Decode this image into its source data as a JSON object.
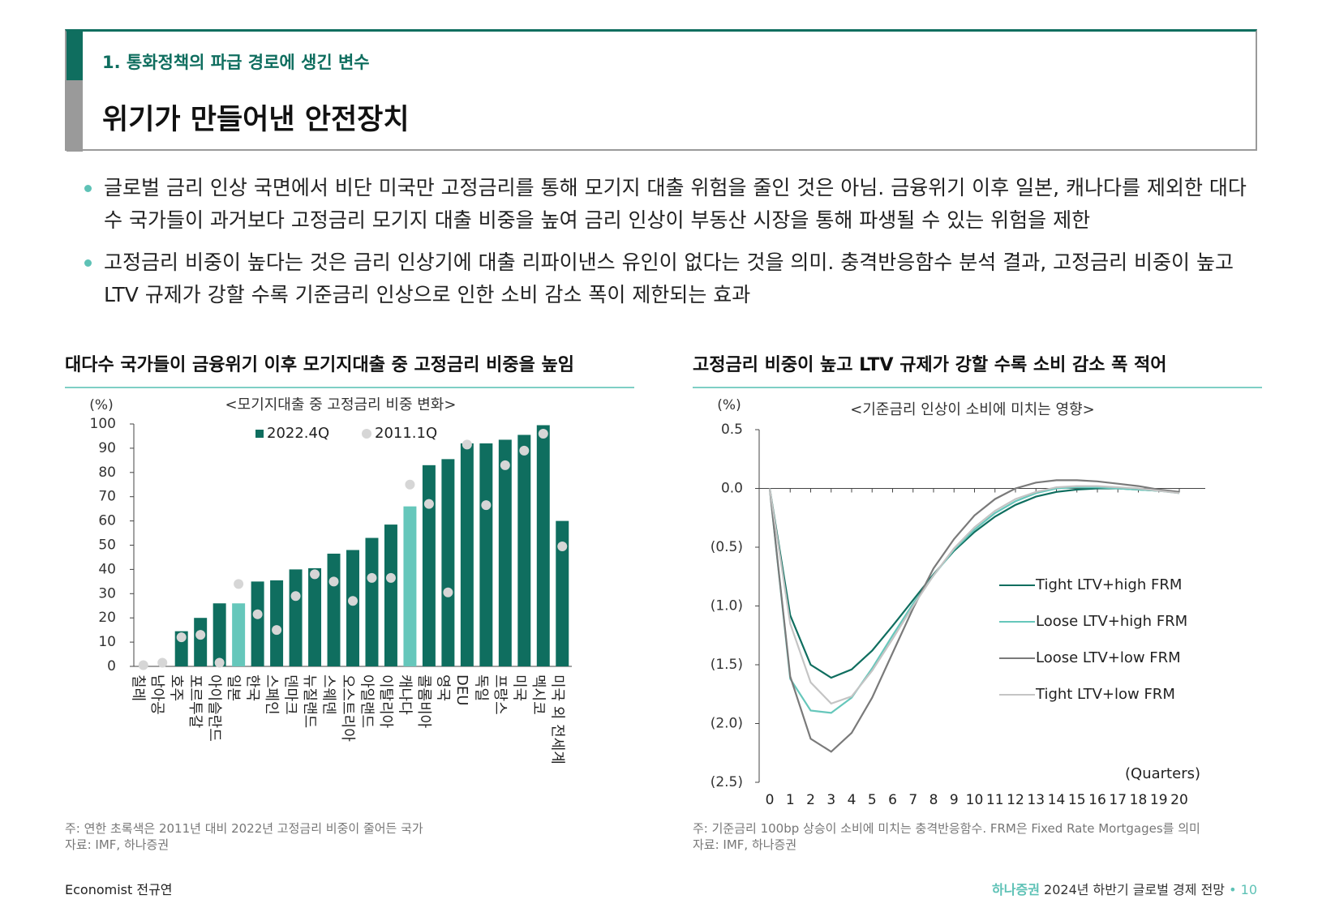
{
  "header": {
    "section": "1. 통화정책의 파급 경로에 생긴 변수",
    "title": "위기가 만들어낸 안전장치"
  },
  "bullets": [
    "글로벌 금리 인상 국면에서 비단 미국만 고정금리를 통해 모기지 대출 위험을 줄인 것은 아님. 금융위기 이후 일본, 캐나다를 제외한 대다수 국가들이 과거보다 고정금리 모기지 대출 비중을 높여 금리 인상이 부동산 시장을 통해 파생될 수 있는 위험을 제한",
    "고정금리 비중이 높다는 것은 금리 인상기에 대출 리파이낸스 유인이 없다는 것을 의미. 충격반응함수 분석 결과, 고정금리 비중이 높고 LTV 규제가 강할 수록 기준금리 인상으로 인한 소비 감소 폭이 제한되는 효과"
  ],
  "left": {
    "heading": "대다수 국가들이 금융위기 이후 모기지대출 중 고정금리 비중을 높임",
    "note": "주: 연한 초록색은 2011년 대비 2022년 고정금리 비중이 줄어든 국가",
    "source": "자료: IMF, 하나증권"
  },
  "right": {
    "heading": "고정금리 비중이 높고 LTV 규제가 강할 수록 소비 감소 폭 적어",
    "note": "주: 기준금리 100bp 상승이 소비에 미치는 충격반응함수. FRM은 Fixed Rate Mortgages를 의미",
    "source": "자료: IMF, 하나증권"
  },
  "footer": {
    "author": "Economist 전규연",
    "brand": "하나증권",
    "report": "2024년 하반기 글로벌 경제 전망",
    "page": "10"
  },
  "colors": {
    "teal_dark": "#0f6e5f",
    "teal_light": "#66c7bb",
    "dot_gray": "#d6d6d6",
    "line_gray_dark": "#7a7a7a",
    "line_gray_light": "#c4c4c4"
  },
  "chart_data": [
    {
      "type": "bar",
      "title": "<모기지대출 중 고정금리 비중 변화>",
      "ylabel": "(%)",
      "ylim": [
        0,
        100
      ],
      "yticks": [
        0,
        10,
        20,
        30,
        40,
        50,
        60,
        70,
        80,
        90,
        100
      ],
      "categories": [
        "칠레",
        "남아공",
        "호주",
        "포르투갈",
        "아이슬란드",
        "일본",
        "한국",
        "스페인",
        "덴마크",
        "뉴질랜드",
        "스웨덴",
        "오스트리아",
        "아일랜드",
        "이탈리아",
        "캐나다",
        "콜롬비아",
        "영국",
        "DEU",
        "독일",
        "프랑스",
        "미국",
        "멕시코",
        "미국 외 전세계"
      ],
      "series": [
        {
          "name": "2022.4Q",
          "values": [
            0,
            0,
            14.5,
            20,
            26,
            26,
            35,
            35.5,
            40,
            40.5,
            46.5,
            48,
            53,
            58.5,
            66,
            83,
            85.5,
            92,
            92,
            93.5,
            95.5,
            99.5,
            60
          ]
        },
        {
          "name": "2011.1Q",
          "values": [
            0.5,
            1.5,
            12,
            13,
            1.5,
            34,
            21.5,
            15,
            29,
            38,
            35,
            27,
            36.5,
            36.5,
            75,
            67,
            30.5,
            91.5,
            66.5,
            83,
            89,
            96,
            49.5
          ]
        }
      ],
      "highlight_categories": [
        "일본",
        "캐나다"
      ],
      "legend": "top-center"
    },
    {
      "type": "line",
      "title": "<기준금리 인상이 소비에 미치는 영향>",
      "ylabel": "(%)",
      "xlabel": "(Quarters)",
      "ylim": [
        -2.5,
        0.5
      ],
      "yticks": [
        "0.5",
        "0.0",
        "(0.5)",
        "(1.0)",
        "(1.5)",
        "(2.0)",
        "(2.5)"
      ],
      "x": [
        0,
        1,
        2,
        3,
        4,
        5,
        6,
        7,
        8,
        9,
        10,
        11,
        12,
        13,
        14,
        15,
        16,
        17,
        18,
        19,
        20
      ],
      "series": [
        {
          "name": "Tight LTV+high FRM",
          "color": "#0f6e5f",
          "values": [
            0,
            -1.08,
            -1.5,
            -1.61,
            -1.54,
            -1.38,
            -1.17,
            -0.95,
            -0.73,
            -0.53,
            -0.37,
            -0.24,
            -0.14,
            -0.07,
            -0.03,
            -0.01,
            0,
            0,
            -0.01,
            -0.02,
            -0.03
          ]
        },
        {
          "name": "Loose LTV+high FRM",
          "color": "#66c7bb",
          "values": [
            0,
            -1.62,
            -1.89,
            -1.91,
            -1.78,
            -1.53,
            -1.25,
            -0.98,
            -0.74,
            -0.52,
            -0.35,
            -0.21,
            -0.11,
            -0.04,
            0,
            0.01,
            0.01,
            0,
            -0.01,
            -0.02,
            -0.04
          ]
        },
        {
          "name": "Loose LTV+low FRM",
          "color": "#7a7a7a",
          "values": [
            0,
            -1.6,
            -2.13,
            -2.24,
            -2.08,
            -1.78,
            -1.4,
            -1.02,
            -0.68,
            -0.43,
            -0.23,
            -0.09,
            0,
            0.05,
            0.07,
            0.07,
            0.06,
            0.04,
            0.02,
            -0.01,
            -0.03
          ]
        },
        {
          "name": "Tight LTV+low FRM",
          "color": "#c4c4c4",
          "values": [
            0,
            -1.15,
            -1.65,
            -1.83,
            -1.77,
            -1.55,
            -1.28,
            -1.0,
            -0.74,
            -0.51,
            -0.33,
            -0.19,
            -0.09,
            -0.03,
            0.01,
            0.02,
            0.02,
            0.01,
            0,
            -0.02,
            -0.04
          ]
        }
      ],
      "legend": "right"
    }
  ]
}
